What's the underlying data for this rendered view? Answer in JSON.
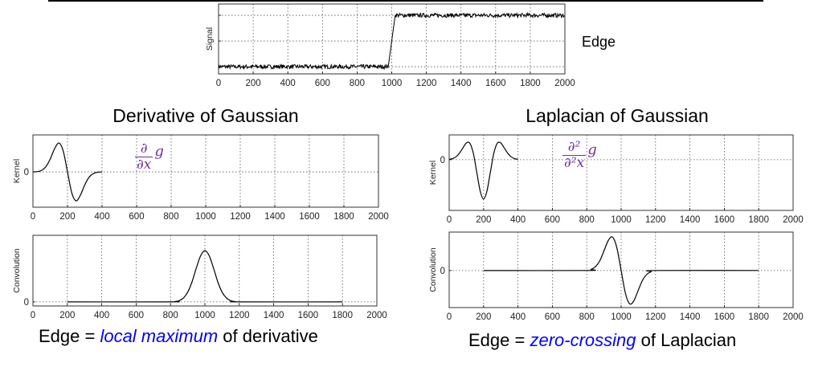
{
  "edge_label": "Edge",
  "titles": {
    "derivative": "Derivative of Gaussian",
    "laplacian": "Laplacian of Gaussian"
  },
  "formulas": {
    "derivative": {
      "numerator": "∂",
      "denominator": "∂x",
      "function": "g"
    },
    "laplacian": {
      "numerator": "∂²",
      "denominator": "∂²x",
      "function": "g"
    }
  },
  "captions": {
    "derivative": {
      "prefix": "Edge = ",
      "highlight": "local maximum",
      "suffix": " of derivative"
    },
    "laplacian": {
      "prefix": "Edge = ",
      "highlight": "zero-crossing",
      "suffix": " of Laplacian"
    }
  },
  "colors": {
    "formula": "#7030a0",
    "highlight": "#0000ff",
    "line": "#000000",
    "grid": "#555555"
  },
  "chart_data": [
    {
      "id": "signal",
      "type": "line",
      "ylabel": "Signal",
      "xlim": [
        0,
        2000
      ],
      "xticks": [
        0,
        200,
        400,
        600,
        800,
        1000,
        1200,
        1400,
        1600,
        1800,
        2000
      ],
      "ylim": [
        -0.14,
        1.22
      ],
      "ygrid": [
        0,
        0.5,
        1
      ],
      "yticklabels": [],
      "grid": true,
      "noise_amplitude": 0.04,
      "points": [
        [
          0,
          0
        ],
        [
          980,
          0
        ],
        [
          1020,
          1
        ],
        [
          2000,
          1
        ]
      ]
    },
    {
      "id": "dog-kernel",
      "type": "line",
      "ylabel": "Kernel",
      "xlim": [
        0,
        2000
      ],
      "xticks": [
        0,
        200,
        400,
        600,
        800,
        1000,
        1200,
        1400,
        1600,
        1800,
        2000
      ],
      "ylim": [
        -1.22,
        1.28
      ],
      "ygrid": [
        0
      ],
      "yticklabels": [
        "0"
      ],
      "grid": true,
      "points": [
        [
          0,
          0.002
        ],
        [
          25,
          0.01
        ],
        [
          50,
          0.055
        ],
        [
          75,
          0.18
        ],
        [
          100,
          0.446
        ],
        [
          125,
          0.8
        ],
        [
          150,
          1
        ],
        [
          175,
          0.73
        ],
        [
          200,
          0
        ],
        [
          225,
          -0.73
        ],
        [
          250,
          -1
        ],
        [
          275,
          -0.8
        ],
        [
          300,
          -0.446
        ],
        [
          325,
          -0.18
        ],
        [
          350,
          -0.055
        ],
        [
          375,
          -0.01
        ],
        [
          400,
          -0.002
        ]
      ]
    },
    {
      "id": "dog-convolution",
      "type": "line",
      "ylabel": "Convolution",
      "xlim": [
        0,
        2000
      ],
      "xticks": [
        0,
        200,
        400,
        600,
        800,
        1000,
        1200,
        1400,
        1600,
        1800,
        2000
      ],
      "ylim": [
        -0.08,
        1.3
      ],
      "ygrid": [
        0
      ],
      "yticklabels": [
        "0"
      ],
      "grid": true,
      "points": [
        [
          200,
          0
        ],
        [
          800,
          0
        ],
        [
          825,
          0.006
        ],
        [
          850,
          0.024
        ],
        [
          875,
          0.076
        ],
        [
          900,
          0.19
        ],
        [
          925,
          0.39
        ],
        [
          950,
          0.66
        ],
        [
          975,
          0.9
        ],
        [
          1000,
          1
        ],
        [
          1025,
          0.9
        ],
        [
          1050,
          0.66
        ],
        [
          1075,
          0.39
        ],
        [
          1100,
          0.19
        ],
        [
          1125,
          0.076
        ],
        [
          1150,
          0.024
        ],
        [
          1175,
          0.006
        ],
        [
          1200,
          0
        ],
        [
          1800,
          0
        ]
      ]
    },
    {
      "id": "log-kernel",
      "type": "line",
      "ylabel": "Kernel",
      "xlim": [
        0,
        2000
      ],
      "xticks": [
        0,
        200,
        400,
        600,
        800,
        1000,
        1200,
        1400,
        1600,
        1800,
        2000
      ],
      "ylim": [
        -1.29,
        0.63
      ],
      "ygrid": [
        0
      ],
      "yticklabels": [
        "0"
      ],
      "grid": true,
      "points": [
        [
          0,
          0.008
        ],
        [
          20,
          0.028
        ],
        [
          40,
          0.075
        ],
        [
          60,
          0.167
        ],
        [
          80,
          0.3
        ],
        [
          100,
          0.425
        ],
        [
          120,
          0.42
        ],
        [
          140,
          0.17
        ],
        [
          160,
          -0.305
        ],
        [
          180,
          -0.79
        ],
        [
          200,
          -1
        ],
        [
          220,
          -0.79
        ],
        [
          240,
          -0.305
        ],
        [
          260,
          0.17
        ],
        [
          280,
          0.42
        ],
        [
          300,
          0.425
        ],
        [
          320,
          0.3
        ],
        [
          340,
          0.167
        ],
        [
          360,
          0.075
        ],
        [
          380,
          0.028
        ],
        [
          400,
          0.008
        ]
      ]
    },
    {
      "id": "log-convolution",
      "type": "line",
      "ylabel": "Convolution",
      "xlim": [
        0,
        2000
      ],
      "xticks": [
        0,
        200,
        400,
        600,
        800,
        1000,
        1200,
        1400,
        1600,
        1800,
        2000
      ],
      "ylim": [
        -1.1,
        1.14
      ],
      "ygrid": [
        0
      ],
      "yticklabels": [
        "0"
      ],
      "grid": true,
      "points": [
        [
          200,
          0
        ],
        [
          800,
          0
        ],
        [
          825,
          0.033
        ],
        [
          850,
          0.11
        ],
        [
          875,
          0.28
        ],
        [
          900,
          0.58
        ],
        [
          925,
          0.89
        ],
        [
          950,
          0.99
        ],
        [
          975,
          0.68
        ],
        [
          1000,
          0
        ],
        [
          1025,
          -0.68
        ],
        [
          1050,
          -0.99
        ],
        [
          1075,
          -0.89
        ],
        [
          1100,
          -0.58
        ],
        [
          1125,
          -0.28
        ],
        [
          1150,
          -0.11
        ],
        [
          1175,
          -0.033
        ],
        [
          1200,
          0
        ],
        [
          1800,
          0
        ]
      ]
    }
  ]
}
